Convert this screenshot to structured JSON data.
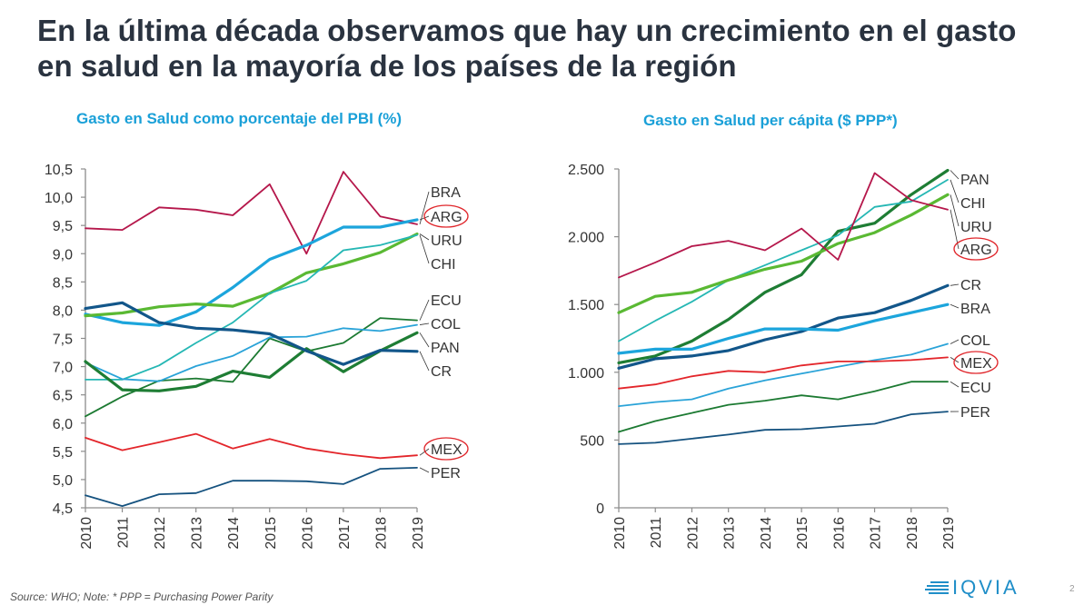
{
  "slide": {
    "title": "En la última década observamos que hay un crecimiento en el gasto en salud en la mayoría de los países de la región",
    "footer": "Source: WHO; Note: * PPP = Purchasing Power Parity",
    "logo": "IQVIA",
    "page_number": "2"
  },
  "colors": {
    "title": "#2a3340",
    "accent": "#1aa0d8",
    "highlight_circle": "#e0262b"
  },
  "chart_data": [
    {
      "type": "line",
      "title": "Gasto en Salud como porcentaje del PBI (%)",
      "xlabel": "",
      "ylabel": "",
      "x": [
        "2010",
        "2011",
        "2012",
        "2013",
        "2014",
        "2015",
        "2016",
        "2017",
        "2018",
        "2019"
      ],
      "ylim": [
        4.5,
        10.5
      ],
      "yticks": [
        "4,5",
        "5,0",
        "5,5",
        "6,0",
        "6,5",
        "7,0",
        "7,5",
        "8,0",
        "8,5",
        "9,0",
        "9,5",
        "10,0",
        "10,5"
      ],
      "legend": "right-labels",
      "highlighted": [
        "ARG",
        "MEX"
      ],
      "series": [
        {
          "name": "BRA",
          "color": "#b5174b",
          "width": "thin",
          "values": [
            9.45,
            9.42,
            9.82,
            9.78,
            9.68,
            10.23,
            9.0,
            10.45,
            9.66,
            9.52
          ]
        },
        {
          "name": "ARG",
          "color": "#1ca5dc",
          "width": "thick",
          "values": [
            7.93,
            7.78,
            7.73,
            7.97,
            8.4,
            8.9,
            9.15,
            9.47,
            9.47,
            9.6
          ]
        },
        {
          "name": "URU",
          "color": "#5ab933",
          "width": "thick",
          "values": [
            7.9,
            7.95,
            8.06,
            8.11,
            8.07,
            8.3,
            8.66,
            8.82,
            9.02,
            9.35
          ]
        },
        {
          "name": "CHI",
          "color": "#25b7b4",
          "width": "thin",
          "values": [
            6.77,
            6.77,
            7.02,
            7.42,
            7.78,
            8.3,
            8.52,
            9.06,
            9.15,
            9.33
          ]
        },
        {
          "name": "ECU",
          "color": "#1c7a32",
          "width": "thin",
          "values": [
            6.12,
            6.47,
            6.75,
            6.79,
            6.73,
            7.5,
            7.27,
            7.42,
            7.86,
            7.82
          ]
        },
        {
          "name": "COL",
          "color": "#2aa3d8",
          "width": "thin",
          "values": [
            7.07,
            6.78,
            6.74,
            7.01,
            7.19,
            7.52,
            7.53,
            7.68,
            7.63,
            7.74
          ]
        },
        {
          "name": "PAN",
          "color": "#1e7d34",
          "width": "thick",
          "values": [
            7.09,
            6.59,
            6.57,
            6.65,
            6.92,
            6.81,
            7.32,
            6.91,
            7.28,
            7.6
          ]
        },
        {
          "name": "CR",
          "color": "#12568a",
          "width": "thick",
          "values": [
            8.03,
            8.13,
            7.78,
            7.68,
            7.65,
            7.58,
            7.28,
            7.04,
            7.29,
            7.27
          ]
        },
        {
          "name": "MEX",
          "color": "#e3262b",
          "width": "thin",
          "values": [
            5.74,
            5.52,
            5.66,
            5.81,
            5.55,
            5.72,
            5.55,
            5.45,
            5.38,
            5.43
          ]
        },
        {
          "name": "PER",
          "color": "#15527f",
          "width": "thin",
          "values": [
            4.72,
            4.53,
            4.74,
            4.76,
            4.98,
            4.98,
            4.97,
            4.92,
            5.19,
            5.21
          ]
        }
      ],
      "label_order": [
        "BRA",
        "ARG",
        "URU",
        "CHI",
        "ECU",
        "COL",
        "PAN",
        "CR",
        "MEX",
        "PER"
      ]
    },
    {
      "type": "line",
      "title": "Gasto en Salud per cápita ($ PPP*)",
      "xlabel": "",
      "ylabel": "",
      "x": [
        "2010",
        "2011",
        "2012",
        "2013",
        "2014",
        "2015",
        "2016",
        "2017",
        "2018",
        "2019"
      ],
      "ylim": [
        0,
        2500
      ],
      "yticks": [
        "0",
        "500",
        "1.000",
        "1.500",
        "2.000",
        "2.500"
      ],
      "legend": "right-labels",
      "highlighted": [
        "ARG",
        "MEX"
      ],
      "series": [
        {
          "name": "PAN",
          "color": "#1e7d34",
          "width": "thick",
          "values": [
            1070,
            1120,
            1230,
            1390,
            1590,
            1720,
            2040,
            2100,
            2310,
            2490
          ]
        },
        {
          "name": "CHI",
          "color": "#25b7b4",
          "width": "thin",
          "values": [
            1230,
            1380,
            1520,
            1680,
            1790,
            1900,
            2010,
            2220,
            2260,
            2420
          ]
        },
        {
          "name": "URU",
          "color": "#5ab933",
          "width": "thick",
          "values": [
            1440,
            1560,
            1590,
            1680,
            1760,
            1820,
            1950,
            2030,
            2160,
            2310
          ]
        },
        {
          "name": "ARG",
          "color": "#b5174b",
          "width": "thin",
          "values": [
            1700,
            1810,
            1930,
            1970,
            1900,
            2060,
            1830,
            2470,
            2270,
            2200
          ]
        },
        {
          "name": "CR",
          "color": "#12568a",
          "width": "thick",
          "values": [
            1030,
            1100,
            1120,
            1160,
            1240,
            1300,
            1400,
            1440,
            1530,
            1640
          ]
        },
        {
          "name": "BRA",
          "color": "#1ca5dc",
          "width": "thick",
          "values": [
            1140,
            1170,
            1170,
            1250,
            1320,
            1320,
            1310,
            1380,
            1440,
            1500
          ]
        },
        {
          "name": "COL",
          "color": "#2aa3d8",
          "width": "thin",
          "values": [
            750,
            780,
            800,
            880,
            940,
            990,
            1040,
            1090,
            1130,
            1210
          ]
        },
        {
          "name": "MEX",
          "color": "#e3262b",
          "width": "thin",
          "values": [
            880,
            910,
            970,
            1010,
            1000,
            1050,
            1080,
            1080,
            1090,
            1110
          ]
        },
        {
          "name": "ECU",
          "color": "#1c7a32",
          "width": "thin",
          "values": [
            560,
            640,
            700,
            760,
            790,
            830,
            800,
            860,
            930,
            930
          ]
        },
        {
          "name": "PER",
          "color": "#15527f",
          "width": "thin",
          "values": [
            470,
            480,
            510,
            540,
            575,
            580,
            600,
            620,
            690,
            710
          ]
        }
      ],
      "label_order": [
        "PAN",
        "CHI",
        "URU",
        "ARG",
        "CR",
        "BRA",
        "COL",
        "MEX",
        "ECU",
        "PER"
      ]
    }
  ]
}
